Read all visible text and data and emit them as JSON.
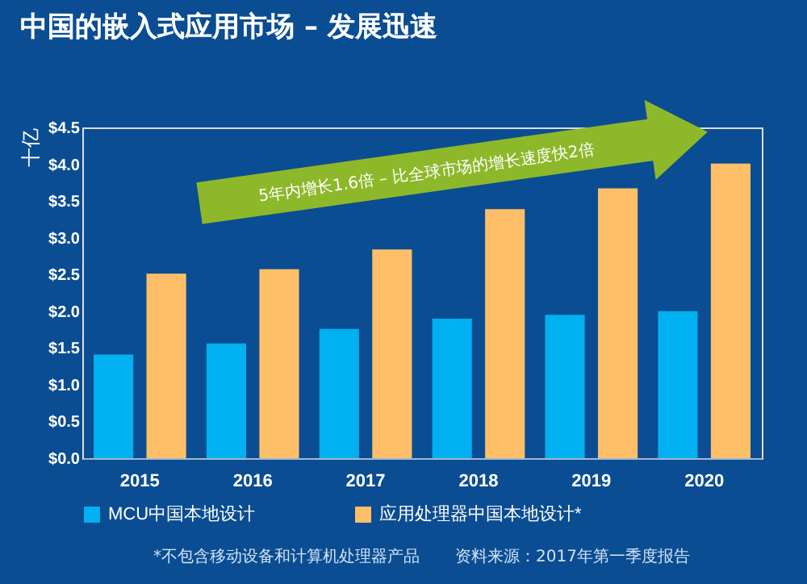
{
  "chart_data": {
    "type": "bar",
    "title": "中国的嵌入式应用市场 – 发展迅速",
    "ylabel": "十亿",
    "categories": [
      "2015",
      "2016",
      "2017",
      "2018",
      "2019",
      "2020"
    ],
    "series": [
      {
        "name": "MCU中国本地设计",
        "color": "#00b0f0",
        "values": [
          1.41,
          1.56,
          1.76,
          1.9,
          1.95,
          2.0
        ]
      },
      {
        "name": "应用处理器中国本地设计*",
        "color": "#ffbf69",
        "values": [
          2.51,
          2.57,
          2.84,
          3.39,
          3.67,
          4.01
        ]
      }
    ],
    "ylim": [
      0,
      4.5
    ],
    "yticks": [
      {
        "value": 0,
        "label": "$0.0"
      },
      {
        "value": 0.5,
        "label": "$0.5"
      },
      {
        "value": 1,
        "label": "$1.0"
      },
      {
        "value": 1.5,
        "label": "$1.5"
      },
      {
        "value": 2,
        "label": "$2.0"
      },
      {
        "value": 2.5,
        "label": "$2.5"
      },
      {
        "value": 3,
        "label": "$3.0"
      },
      {
        "value": 3.5,
        "label": "$3.5"
      },
      {
        "value": 4,
        "label": "$4.0"
      },
      {
        "value": 4.5,
        "label": "$4.5"
      }
    ],
    "annotations": [
      "5年内增长1.6倍 – 比全球市场的增长速度快2倍",
      "*不包含移动设备和计算机处理器产品",
      "资料来源：2017年第一季度报告"
    ],
    "legend": "bottom",
    "grid": false
  }
}
